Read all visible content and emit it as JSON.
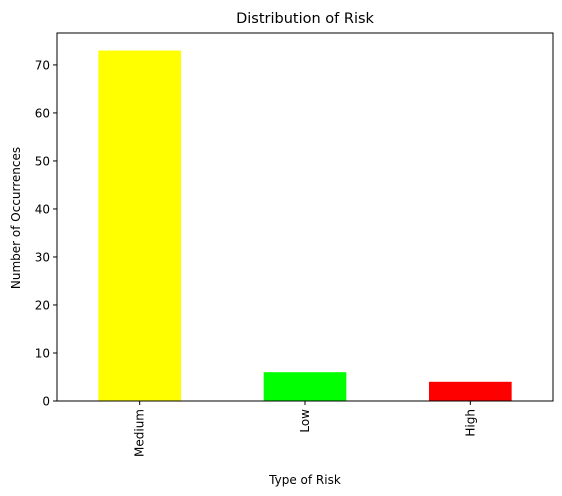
{
  "chart_data": {
    "type": "bar",
    "title": "Distribution of Risk",
    "xlabel": "Type of Risk",
    "ylabel": "Number of Occurrences",
    "categories": [
      "Medium",
      "Low",
      "High"
    ],
    "values": [
      73,
      6,
      4
    ],
    "colors": [
      "#ffff00",
      "#00ff00",
      "#ff0000"
    ],
    "ylim": [
      0,
      76.65
    ],
    "yticks": [
      0,
      10,
      20,
      30,
      40,
      50,
      60,
      70
    ],
    "xtick_rotation": "vertical",
    "grid": false,
    "legend": "none"
  }
}
